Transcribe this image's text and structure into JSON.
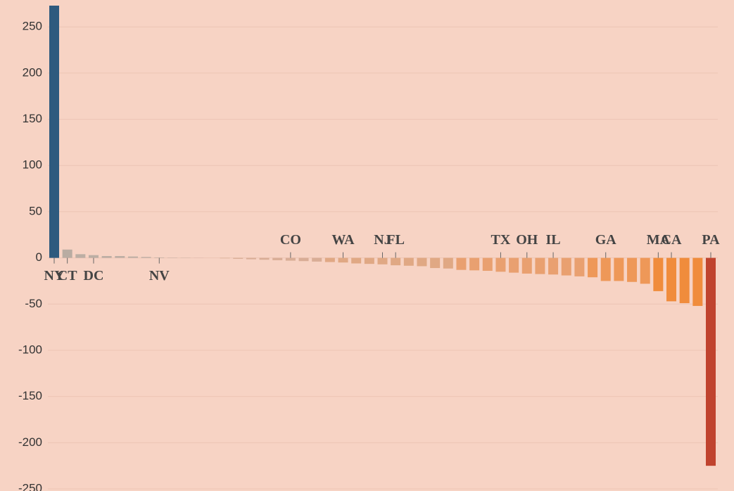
{
  "chart_data": {
    "type": "bar",
    "categories": [
      "NY",
      "CT",
      null,
      "DC",
      null,
      null,
      null,
      null,
      "NV",
      null,
      null,
      null,
      null,
      null,
      null,
      null,
      null,
      null,
      "CO",
      null,
      null,
      null,
      "WA",
      null,
      null,
      "NJ",
      "FL",
      null,
      null,
      null,
      null,
      null,
      null,
      null,
      "TX",
      null,
      "OH",
      null,
      "IL",
      null,
      null,
      null,
      "GA",
      null,
      null,
      null,
      "MA",
      "CA",
      null,
      null,
      "PA"
    ],
    "values": [
      273,
      9,
      4,
      3,
      2,
      2,
      1.5,
      1,
      0.5,
      0.3,
      0.2,
      0.1,
      0,
      -0.5,
      -1,
      -1.5,
      -2,
      -2.5,
      -3,
      -3.5,
      -4,
      -4.5,
      -5,
      -6,
      -6.5,
      -7,
      -8,
      -8.5,
      -9,
      -11,
      -11.5,
      -13,
      -13.5,
      -14,
      -15,
      -16,
      -17,
      -17.5,
      -18,
      -19,
      -20,
      -21,
      -25,
      -25,
      -26,
      -28,
      -36,
      -47,
      -49,
      -52,
      -225
    ],
    "colors": [
      "#2e5a7e",
      "#b9aca2",
      "#bcaea4",
      "#bcaea4",
      "#bcaea4",
      "#bcaea4",
      "#bcaea4",
      "#bcaea4",
      "#bcaea4",
      "#bcaea4",
      "#bcaea4",
      "#bcaea4",
      "#d9ad96",
      "#d9ad96",
      "#d9ad96",
      "#d9ad96",
      "#d9ad96",
      "#d9ad96",
      "#d9ad96",
      "#d9ad96",
      "#d9ad96",
      "#e0a884",
      "#e0a884",
      "#e0a884",
      "#e0a884",
      "#e0a884",
      "#e0a884",
      "#e0a884",
      "#e0a884",
      "#e0a884",
      "#e0a884",
      "#e9a070",
      "#e9a070",
      "#e9a070",
      "#e9a070",
      "#e9a070",
      "#e9a070",
      "#e9a070",
      "#e9a070",
      "#e9a070",
      "#e9a070",
      "#ee9858",
      "#ee9858",
      "#ee9858",
      "#ee9858",
      "#ee9858",
      "#f08c3c",
      "#f08c3c",
      "#f08c3c",
      "#f08c3c",
      "#c0432e"
    ],
    "ylim": [
      -250,
      273
    ],
    "yticks": [
      250,
      200,
      150,
      100,
      50,
      0,
      -50,
      -100,
      -150,
      -200,
      -250
    ],
    "grid": true
  }
}
